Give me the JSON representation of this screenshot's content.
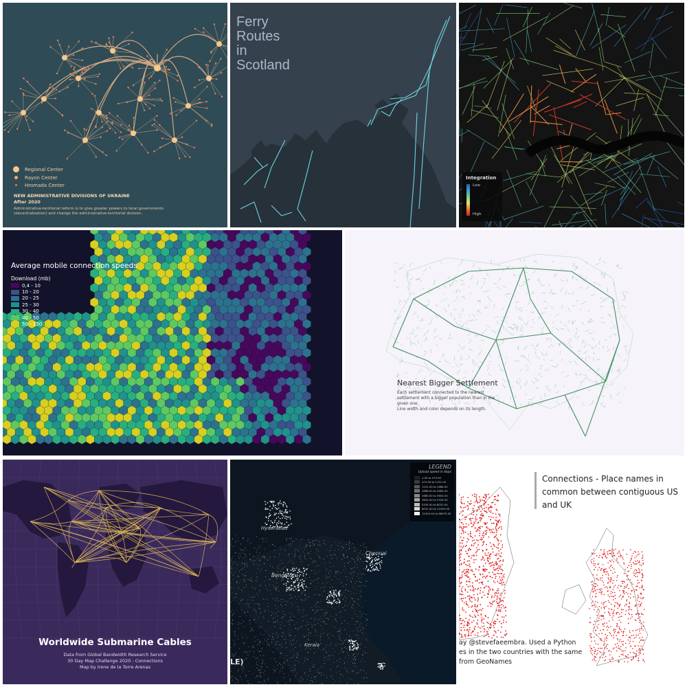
{
  "ukraine_divisions": {
    "legend": [
      {
        "label": "Regional Center"
      },
      {
        "label": "Rayon Center"
      },
      {
        "label": "Hromada Center"
      }
    ],
    "title": "NEW ADMINISTRATIVE DIVISIONS OF UKRAINE",
    "subtitle": "After 2020",
    "description": "Administrative-territorial reform is to give greater powers to local governments (decentralisation) and change the administrative-territorial division."
  },
  "ferry": {
    "title_lines": [
      "Ferry",
      "Routes",
      "in",
      "Scotland"
    ]
  },
  "integration": {
    "legend_title": "Integration",
    "low": "Low",
    "high": "High"
  },
  "mobile_speeds": {
    "title": "Average mobile connection speeds",
    "legend_title": "Download (mb)",
    "legend": [
      {
        "label": "0,4 - 10",
        "color": "#46085c"
      },
      {
        "label": "10 - 20",
        "color": "#3b528b"
      },
      {
        "label": "20 - 25",
        "color": "#2c728e"
      },
      {
        "label": "25 - 30",
        "color": "#21918c"
      },
      {
        "label": "30 - 40",
        "color": "#28ae80"
      },
      {
        "label": "40 - 50",
        "color": "#5ec962"
      },
      {
        "label": "50 - 150",
        "color": "#d7cf22"
      }
    ]
  },
  "settlement": {
    "title": "Nearest Bigger Settlement",
    "lines": [
      "Each settlement connected to the nearest",
      "settlement with a bigger population than in the",
      "given one.",
      "Line width and color depends on its length."
    ]
  },
  "submarine": {
    "title": "Worldwide Submarine Cables",
    "lines": [
      "Data from Global Bandwidth Research Service",
      "30 Day Map Challenge 2020 - Connections",
      "Map by Irene de la Torre Arenas"
    ]
  },
  "upload": {
    "legend_title": "LEGEND",
    "legend_subtitle": "Upload speed in kbps",
    "cities": [
      "Hyderabad",
      "Chennai",
      "Bengaluru",
      "Kerala"
    ],
    "edge_fragment": "LE)",
    "legend_rows": [
      "1.00 to 473.00",
      "473.00 to 1151.00",
      "1151.00 to 1866.00",
      "1866.00 to 2680.00",
      "2680.00 to 3604.00",
      "3604.00 to 5334.00",
      "5334.00 to 8031.00",
      "8031.00 to 12494.00",
      "12494.00 to 66970.00"
    ],
    "legend_colors": [
      "#222222",
      "#3c3c3c",
      "#555555",
      "#6e6e6e",
      "#888888",
      "#a2a2a2",
      "#bcbcbc",
      "#d6d6d6",
      "#f0f0f0"
    ]
  },
  "place_names": {
    "title_lines": [
      "Connections - Place names in",
      "common between contiguous US",
      "and UK"
    ],
    "footer_lines": [
      "ay @stevefaeembra. Used  a Python",
      "es in the two countries with the same",
      " from GeoNames"
    ]
  }
}
